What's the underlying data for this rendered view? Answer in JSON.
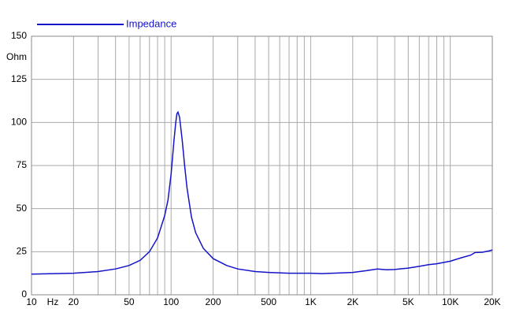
{
  "chart_data": {
    "type": "line",
    "x_unit_label": "Hz",
    "y_unit_label": "Ohm",
    "x_log": true,
    "grid": true,
    "xlim": [
      10,
      20000
    ],
    "ylim": [
      0,
      150
    ],
    "yticks": [
      0,
      25,
      50,
      75,
      100,
      125,
      150
    ],
    "xticks": [
      10,
      20,
      50,
      100,
      200,
      500,
      {
        "value": 1000,
        "label": "1K"
      },
      {
        "value": 2000,
        "label": "2K"
      },
      {
        "value": 5000,
        "label": "5K"
      },
      {
        "value": 10000,
        "label": "10K"
      },
      {
        "value": 20000,
        "label": "20K"
      }
    ],
    "x_minor_grid": [
      30,
      40,
      60,
      70,
      80,
      90,
      300,
      400,
      600,
      700,
      800,
      900,
      3000,
      4000,
      6000,
      7000,
      8000,
      9000
    ],
    "legend": "top-left",
    "series": [
      {
        "name": "Impedance",
        "color": "#1414c8",
        "x": [
          10,
          20,
          30,
          40,
          50,
          60,
          70,
          80,
          90,
          95,
          100,
          105,
          108,
          110,
          112,
          115,
          120,
          125,
          130,
          140,
          150,
          170,
          200,
          250,
          300,
          400,
          500,
          700,
          1000,
          1200,
          1500,
          2000,
          2500,
          3000,
          3500,
          4000,
          5000,
          6000,
          7000,
          8000,
          10000,
          12000,
          14000,
          15000,
          17000,
          19000,
          20000
        ],
        "values": [
          12,
          12.5,
          13.5,
          15,
          17,
          20,
          25,
          33,
          46,
          55,
          70,
          90,
          100,
          105,
          106,
          103,
          90,
          75,
          62,
          45,
          36,
          27,
          21,
          17,
          15,
          13.5,
          13,
          12.5,
          12.5,
          12.3,
          12.6,
          13,
          14,
          15,
          14.5,
          14.7,
          15.5,
          16.5,
          17.5,
          18,
          19.5,
          21.5,
          23,
          24.5,
          24.7,
          25.5,
          26
        ]
      }
    ]
  }
}
